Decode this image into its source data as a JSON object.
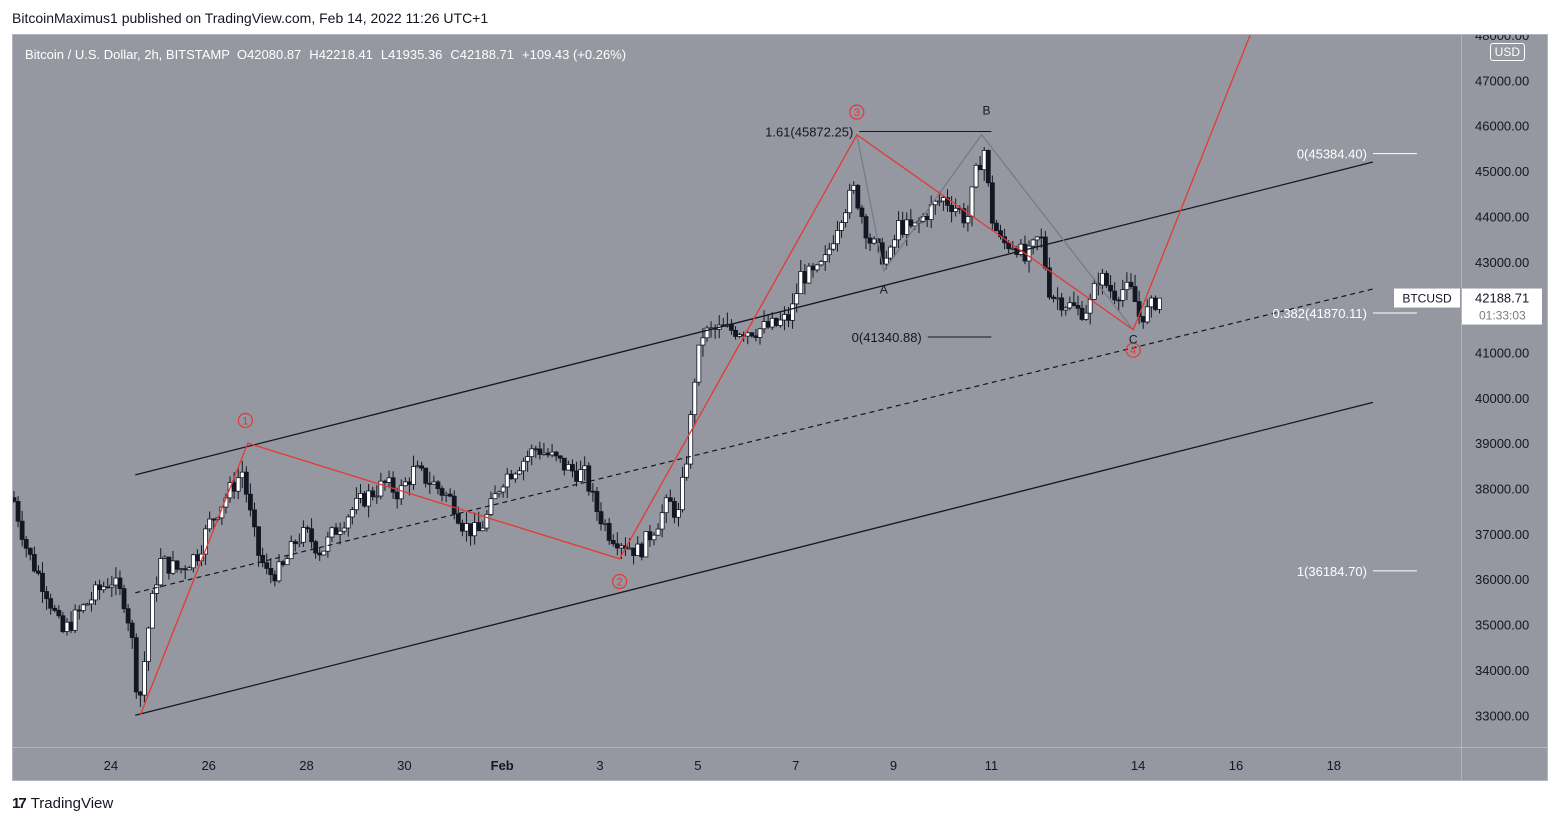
{
  "header": {
    "publisher_line": "BitcoinMaximus1 published on TradingView.com, Feb 14, 2022 11:26 UTC+1"
  },
  "footer": {
    "brand": "TradingView",
    "logo_text": "17"
  },
  "legend": {
    "symbol": "Bitcoin / U.S. Dollar, 2h, BITSTAMP",
    "o_label": "O",
    "o": "42080.87",
    "h_label": "H",
    "h": "42218.41",
    "l_label": "L",
    "l": "41935.36",
    "c_label": "C",
    "c": "42188.71",
    "change": "+109.43 (+0.26%)"
  },
  "currency": "USD",
  "colors": {
    "background": "#9598a1",
    "wave": "#e53935",
    "channel": "#131722",
    "abc": "#787b86",
    "candle_up": "#ffffff",
    "candle_down": "#131722"
  },
  "price_tag": {
    "symbol": "BTCUSD",
    "price": "42188.71",
    "countdown": "01:33:03"
  },
  "chart_data": {
    "type": "candlestick",
    "ylim": [
      32300,
      48000
    ],
    "xlim": [
      22.0,
      51.6
    ],
    "y_ticks": [
      "33000.00",
      "34000.00",
      "35000.00",
      "36000.00",
      "37000.00",
      "38000.00",
      "39000.00",
      "40000.00",
      "41000.00",
      "42000.00",
      "43000.00",
      "44000.00",
      "45000.00",
      "46000.00",
      "47000.00",
      "48000.00"
    ],
    "y_tick_values": [
      33000,
      34000,
      35000,
      36000,
      37000,
      38000,
      39000,
      40000,
      41000,
      42000,
      43000,
      44000,
      45000,
      46000,
      47000,
      48000
    ],
    "x_ticks": [
      {
        "label": "24",
        "x": 24
      },
      {
        "label": "26",
        "x": 26
      },
      {
        "label": "28",
        "x": 28
      },
      {
        "label": "30",
        "x": 30
      },
      {
        "label": "Feb",
        "x": 32
      },
      {
        "label": "3",
        "x": 34
      },
      {
        "label": "5",
        "x": 36
      },
      {
        "label": "7",
        "x": 38
      },
      {
        "label": "9",
        "x": 40
      },
      {
        "label": "11",
        "x": 42
      },
      {
        "label": "14",
        "x": 45
      },
      {
        "label": "16",
        "x": 47
      },
      {
        "label": "18",
        "x": 49
      }
    ],
    "price_anchors": [
      [
        22.0,
        37800
      ],
      [
        22.3,
        36600
      ],
      [
        22.7,
        35700
      ],
      [
        23.0,
        34800
      ],
      [
        23.3,
        35200
      ],
      [
        23.7,
        35700
      ],
      [
        24.0,
        36000
      ],
      [
        24.3,
        35500
      ],
      [
        24.5,
        34200
      ],
      [
        24.55,
        33000
      ],
      [
        24.8,
        35200
      ],
      [
        25.0,
        36400
      ],
      [
        25.4,
        36200
      ],
      [
        25.8,
        36600
      ],
      [
        26.0,
        37200
      ],
      [
        26.4,
        37900
      ],
      [
        26.7,
        38400
      ],
      [
        26.8,
        37700
      ],
      [
        27.0,
        36600
      ],
      [
        27.2,
        36100
      ],
      [
        27.5,
        36200
      ],
      [
        27.8,
        36900
      ],
      [
        28.0,
        37000
      ],
      [
        28.3,
        36600
      ],
      [
        28.6,
        37100
      ],
      [
        28.9,
        37500
      ],
      [
        29.2,
        37800
      ],
      [
        29.6,
        38100
      ],
      [
        29.9,
        37900
      ],
      [
        30.2,
        38400
      ],
      [
        30.6,
        38100
      ],
      [
        31.0,
        37700
      ],
      [
        31.2,
        37200
      ],
      [
        31.5,
        37000
      ],
      [
        31.7,
        37400
      ],
      [
        32.0,
        38200
      ],
      [
        32.4,
        38600
      ],
      [
        32.7,
        38900
      ],
      [
        33.0,
        38700
      ],
      [
        33.4,
        38400
      ],
      [
        33.7,
        38300
      ],
      [
        33.9,
        37600
      ],
      [
        34.2,
        37000
      ],
      [
        34.5,
        36800
      ],
      [
        34.8,
        36600
      ],
      [
        35.2,
        37300
      ],
      [
        35.4,
        37700
      ],
      [
        35.6,
        37400
      ],
      [
        35.8,
        38900
      ],
      [
        35.95,
        40600
      ],
      [
        36.1,
        41400
      ],
      [
        36.4,
        41500
      ],
      [
        36.8,
        41500
      ],
      [
        37.2,
        41500
      ],
      [
        37.6,
        41600
      ],
      [
        37.9,
        41800
      ],
      [
        38.1,
        42700
      ],
      [
        38.4,
        42700
      ],
      [
        38.6,
        43000
      ],
      [
        38.9,
        44000
      ],
      [
        39.2,
        44600
      ],
      [
        39.5,
        43500
      ],
      [
        39.7,
        43200
      ],
      [
        39.9,
        43000
      ],
      [
        40.1,
        43800
      ],
      [
        40.4,
        43700
      ],
      [
        40.7,
        44100
      ],
      [
        41.0,
        44400
      ],
      [
        41.3,
        44200
      ],
      [
        41.5,
        43900
      ],
      [
        41.7,
        45000
      ],
      [
        41.85,
        45500
      ],
      [
        42.0,
        44000
      ],
      [
        42.2,
        43400
      ],
      [
        42.5,
        43400
      ],
      [
        42.7,
        43000
      ],
      [
        43.0,
        43600
      ],
      [
        43.2,
        42300
      ],
      [
        43.5,
        42100
      ],
      [
        43.8,
        41900
      ],
      [
        44.0,
        42000
      ],
      [
        44.2,
        42700
      ],
      [
        44.5,
        42300
      ],
      [
        44.7,
        42400
      ],
      [
        44.9,
        42300
      ],
      [
        45.0,
        41800
      ],
      [
        45.2,
        41900
      ],
      [
        45.4,
        42200
      ],
      [
        45.45,
        42190
      ]
    ],
    "channel_upper": [
      [
        24.5,
        38300
      ],
      [
        49.8,
        45200
      ]
    ],
    "channel_mid": [
      [
        24.5,
        35700
      ],
      [
        49.8,
        42400
      ]
    ],
    "channel_lower": [
      [
        24.5,
        33000
      ],
      [
        49.8,
        39900
      ]
    ],
    "wave_path": [
      [
        24.6,
        33000
      ],
      [
        26.8,
        39000
      ],
      [
        34.4,
        36450
      ],
      [
        39.25,
        45800
      ],
      [
        44.9,
        41500
      ],
      [
        47.4,
        48300
      ]
    ],
    "abc_path": [
      [
        39.25,
        45800
      ],
      [
        39.8,
        42800
      ],
      [
        41.8,
        45800
      ],
      [
        44.9,
        41500
      ]
    ],
    "wave_labels": [
      {
        "label": "1",
        "x": 26.75,
        "y": 39500
      },
      {
        "label": "2",
        "x": 34.4,
        "y": 35950
      },
      {
        "label": "3",
        "x": 39.25,
        "y": 46300
      },
      {
        "label": "4",
        "x": 44.9,
        "y": 41050
      }
    ],
    "abc_labels": [
      {
        "label": "A",
        "x": 39.8,
        "y": 42300
      },
      {
        "label": "B",
        "x": 41.9,
        "y": 46250
      },
      {
        "label": "C",
        "x": 44.9,
        "y": 41200
      }
    ],
    "fib_levels": [
      {
        "label": "1.61(45872.25)",
        "price": 45872,
        "x1": 39.3,
        "x2": 42.0,
        "align": "end"
      },
      {
        "label": "0(41340.88)",
        "price": 41341,
        "x1": 40.7,
        "x2": 42.0,
        "align": "end"
      },
      {
        "label": "0(45384.40)",
        "price": 45384,
        "x1": 49.8,
        "x2": 50.7,
        "align": "end"
      },
      {
        "label": "0.382(41870.11)",
        "price": 41870,
        "x1": 49.8,
        "x2": 50.7,
        "align": "end"
      },
      {
        "label": "1(36184.70)",
        "price": 36185,
        "x1": 49.8,
        "x2": 50.7,
        "align": "end"
      }
    ]
  }
}
